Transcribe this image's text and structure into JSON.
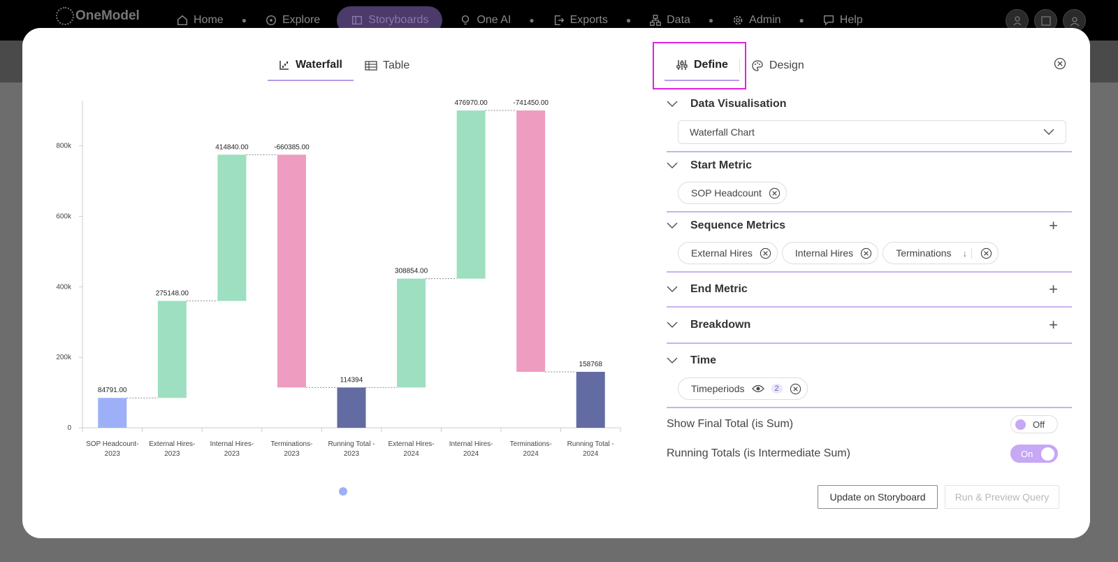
{
  "nav": {
    "logo": "OneModel",
    "items": [
      {
        "label": "Home",
        "icon": "home-icon"
      },
      {
        "label": "Explore",
        "icon": "compass-icon"
      },
      {
        "label": "Storyboards",
        "icon": "storyboard-icon"
      },
      {
        "label": "One AI",
        "icon": "lightbulb-icon"
      },
      {
        "label": "Exports",
        "icon": "export-icon"
      },
      {
        "label": "Data",
        "icon": "data-icon"
      },
      {
        "label": "Admin",
        "icon": "gear-icon"
      },
      {
        "label": "Help",
        "icon": "help-icon"
      }
    ],
    "active": "Storyboards"
  },
  "viewTabs": {
    "waterfall": "Waterfall",
    "table": "Table"
  },
  "defineTabs": {
    "define": "Define",
    "design": "Design"
  },
  "chart_data": {
    "type": "bar",
    "subtype": "waterfall",
    "categories": [
      [
        "SOP Headcount-",
        "2023"
      ],
      [
        "External Hires-",
        "2023"
      ],
      [
        "Internal Hires-",
        "2023"
      ],
      [
        "Terminations-",
        "2023"
      ],
      [
        "Running Total -",
        "2023"
      ],
      [
        "External Hires-",
        "2024"
      ],
      [
        "Internal Hires-",
        "2024"
      ],
      [
        "Terminations-",
        "2024"
      ],
      [
        "Running Total -",
        "2024"
      ]
    ],
    "bars": [
      {
        "start": 0,
        "end": 84791,
        "label": "84791.00",
        "kind": "total-start"
      },
      {
        "start": 84791,
        "end": 359939,
        "label": "275148.00",
        "kind": "increase"
      },
      {
        "start": 359939,
        "end": 774779,
        "label": "414840.00",
        "kind": "increase"
      },
      {
        "start": 774779,
        "end": 114394,
        "label": "-660385.00",
        "kind": "decrease"
      },
      {
        "start": 0,
        "end": 114394,
        "label": "114394",
        "kind": "total"
      },
      {
        "start": 114394,
        "end": 423248,
        "label": "308854.00",
        "kind": "increase"
      },
      {
        "start": 423248,
        "end": 900218,
        "label": "476970.00",
        "kind": "increase"
      },
      {
        "start": 900218,
        "end": 158768,
        "label": "-741450.00",
        "kind": "decrease"
      },
      {
        "start": 0,
        "end": 158768,
        "label": "158768",
        "kind": "total"
      }
    ],
    "yticks": [
      0,
      200000,
      400000,
      600000,
      800000
    ],
    "yticklabels": [
      "0",
      "200k",
      "400k",
      "600k",
      "800k"
    ],
    "ylim": [
      0,
      940000
    ],
    "colors": {
      "total-start": "#9db0f7",
      "increase": "#9ddfc0",
      "decrease": "#ee9cc0",
      "total": "#636ba3"
    },
    "legend": "none",
    "grid": false
  },
  "panel": {
    "sections": {
      "dataVis": {
        "title": "Data Visualisation",
        "value": "Waterfall Chart"
      },
      "start": {
        "title": "Start Metric",
        "chips": [
          "SOP Headcount"
        ]
      },
      "sequence": {
        "title": "Sequence Metrics",
        "chips": [
          "External Hires",
          "Internal Hires",
          "Terminations"
        ]
      },
      "end": {
        "title": "End Metric"
      },
      "breakdown": {
        "title": "Breakdown"
      },
      "time": {
        "title": "Time",
        "chip": "Timeperiods",
        "count": "2"
      }
    },
    "toggles": {
      "finalTotal": {
        "label": "Show Final Total (is Sum)",
        "state": "Off"
      },
      "running": {
        "label": "Running Totals (is Intermediate Sum)",
        "state": "On"
      }
    }
  },
  "buttons": {
    "update": "Update on Storyboard",
    "run": "Run & Preview Query"
  }
}
